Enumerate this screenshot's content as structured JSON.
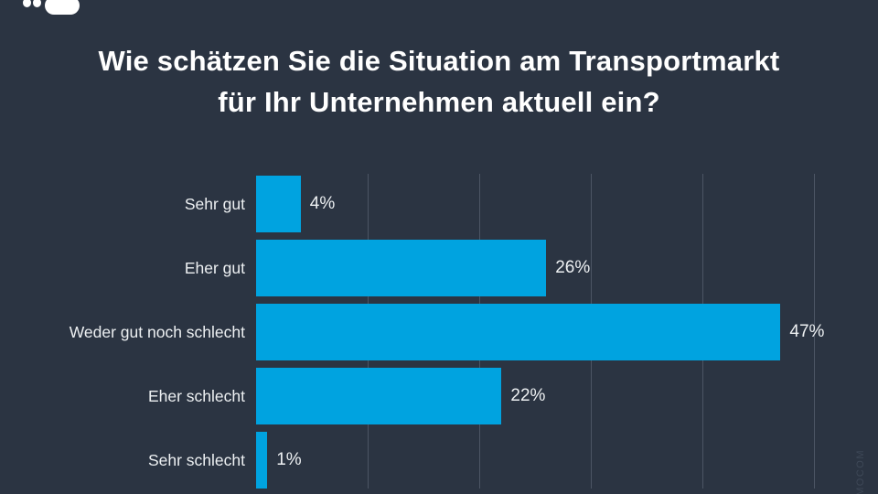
{
  "header": {
    "title_line1": "Wie schätzen Sie die Situation am Transportmarkt",
    "title_line2": "für Ihr Unternehmen aktuell ein?"
  },
  "footer": {
    "watermark": "MOCOM"
  },
  "colors": {
    "background": "#2B3442",
    "bar": "#00A3E0",
    "title_text": "#FFFFFF",
    "label_text": "#EDF0F2",
    "gridline": "#4C5564",
    "watermark_text": "#3E4857"
  },
  "chart_data": {
    "type": "bar",
    "orientation": "horizontal",
    "title": "Wie schätzen Sie die Situation am Transportmarkt für Ihr Unternehmen aktuell ein?",
    "categories": [
      "Sehr gut",
      "Eher gut",
      "Weder gut noch schlecht",
      "Eher schlecht",
      "Sehr schlecht"
    ],
    "values": [
      4,
      26,
      47,
      22,
      1
    ],
    "value_labels": [
      "4%",
      "26%",
      "47%",
      "22%",
      "1%"
    ],
    "unit": "%",
    "xlim": [
      0,
      55
    ],
    "gridline_ticks_percent": [
      10,
      20,
      30,
      40,
      50
    ],
    "grid": "vertical-lines-only",
    "axis_tick_labels": "none",
    "legend": "none"
  }
}
